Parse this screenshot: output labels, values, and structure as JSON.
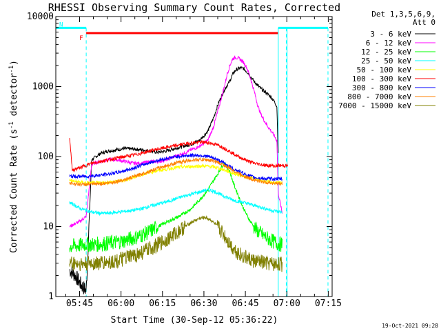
{
  "chart_data": {
    "type": "line",
    "title": "RHESSI Observing Summary Count Rates, Corrected",
    "xlabel": "Start Time (30-Sep-12 05:36:22)",
    "ylabel_main": "Corrected Count Rate (s",
    "ylabel_sup1": "-1",
    "ylabel_mid": " detector",
    "ylabel_sup2": "-1",
    "ylabel_end": ")",
    "yscale": "log",
    "ylim": [
      1,
      10000
    ],
    "xlim_minutes": [
      0,
      100
    ],
    "x_ticks": [
      "05:45",
      "06:00",
      "06:15",
      "06:30",
      "06:45",
      "07:00",
      "07:15"
    ],
    "x_tick_minutes": [
      8.6,
      23.6,
      38.6,
      53.6,
      68.6,
      83.6,
      98.6
    ],
    "y_ticks": [
      "1",
      "10",
      "100",
      "1000",
      "10000"
    ],
    "y_tick_values": [
      1,
      10,
      100,
      1000,
      10000
    ],
    "legend_header": [
      "Det 1,3,5,6,9,",
      "Att 0"
    ],
    "legend_position": "right",
    "footer": "19-Oct-2021 09:28",
    "flags": [
      {
        "label": "F",
        "color": "#ff0000",
        "start_min": 11,
        "end_min": 80.5,
        "level": 5800
      },
      {
        "label": "N",
        "color": "#00ffff",
        "start_min": 0,
        "end_min": 11,
        "level": 6900
      },
      {
        "label": "",
        "color": "#00ffff",
        "start_min": 80.5,
        "end_min": 98.5,
        "level": 6900
      }
    ],
    "vlines_solid_min": [
      0,
      80.5,
      83.7
    ],
    "vlines_dashed_min": [
      11,
      83.4,
      98.5
    ],
    "series": [
      {
        "name": "3 - 6 keV",
        "color": "#000000",
        "x": [
          5,
          7,
          9,
          11,
          13,
          16,
          19,
          22,
          25,
          28,
          31,
          34,
          37,
          40,
          43,
          46,
          49,
          52,
          55,
          57,
          59,
          61,
          63,
          64,
          65,
          66,
          67,
          68,
          69,
          70,
          71,
          72,
          73,
          74,
          75,
          76,
          77,
          78,
          79,
          80,
          80.5
        ],
        "y": [
          2.4,
          2.0,
          1.5,
          1.2,
          90,
          110,
          120,
          125,
          130,
          128,
          125,
          120,
          115,
          120,
          130,
          140,
          150,
          170,
          230,
          350,
          600,
          900,
          1200,
          1500,
          1700,
          1800,
          1850,
          1800,
          1650,
          1500,
          1300,
          1150,
          1050,
          950,
          880,
          820,
          760,
          700,
          620,
          520,
          100
        ]
      },
      {
        "name": "6 - 12 keV",
        "color": "#ff00ff",
        "x": [
          5,
          7,
          9,
          11,
          13,
          16,
          19,
          22,
          25,
          28,
          31,
          34,
          37,
          40,
          43,
          46,
          49,
          52,
          55,
          57,
          59,
          61,
          62,
          63,
          64,
          65,
          66,
          67,
          68,
          69,
          70,
          71,
          72,
          73,
          74,
          75,
          76,
          77,
          78,
          79,
          80,
          80.5,
          82
        ],
        "y": [
          10,
          11,
          12,
          14,
          78,
          85,
          90,
          90,
          85,
          80,
          80,
          85,
          85,
          90,
          100,
          110,
          125,
          140,
          170,
          260,
          500,
          1000,
          1500,
          2000,
          2500,
          2600,
          2550,
          2400,
          2200,
          1900,
          1500,
          1100,
          800,
          550,
          420,
          350,
          300,
          260,
          230,
          200,
          170,
          30,
          15
        ]
      },
      {
        "name": "12 - 25 keV",
        "color": "#00ff00",
        "x": [
          5,
          7,
          9,
          11,
          13,
          16,
          19,
          22,
          25,
          28,
          31,
          34,
          37,
          40,
          43,
          46,
          49,
          52,
          55,
          57,
          59,
          60,
          61,
          62,
          63,
          64,
          65,
          66,
          67,
          68,
          69,
          70,
          71,
          72,
          74,
          76,
          78,
          80,
          82
        ],
        "y": [
          5.2,
          5.3,
          5.4,
          5.6,
          5.5,
          5.6,
          5.8,
          6.0,
          6.3,
          6.8,
          7.5,
          8.5,
          10,
          11.5,
          13,
          15,
          18,
          24,
          33,
          45,
          60,
          72,
          80,
          70,
          60,
          45,
          35,
          28,
          22,
          18,
          15,
          12.5,
          11,
          9.5,
          8,
          7,
          6.3,
          5.8,
          5.5
        ]
      },
      {
        "name": "25 - 50 keV",
        "color": "#00ffff",
        "x": [
          5,
          7,
          9,
          11,
          13,
          16,
          19,
          22,
          25,
          28,
          31,
          34,
          37,
          40,
          43,
          46,
          49,
          52,
          54,
          56,
          58,
          60,
          62,
          64,
          66,
          68,
          70,
          72,
          74,
          76,
          78,
          80,
          82
        ],
        "y": [
          22,
          20,
          18,
          17,
          16,
          15.5,
          15.5,
          16,
          16.5,
          17,
          18,
          19.5,
          21,
          22.5,
          24.5,
          27,
          29,
          31,
          33,
          33,
          31,
          28,
          26,
          24,
          23,
          22,
          21,
          20,
          19,
          18,
          17,
          16.5,
          16
        ]
      },
      {
        "name": "50 - 100 keV",
        "color": "#ffff00",
        "x": [
          5,
          7,
          9,
          11,
          13,
          16,
          19,
          22,
          25,
          28,
          31,
          34,
          37,
          40,
          43,
          46,
          49,
          52,
          54,
          56,
          58,
          60,
          62,
          64,
          66,
          68,
          70,
          72,
          74,
          76,
          78,
          80,
          82
        ],
        "y": [
          46,
          44,
          43,
          42,
          42,
          42,
          43,
          44,
          46,
          50,
          55,
          60,
          63,
          66,
          69,
          71,
          72,
          73,
          73,
          72,
          70,
          66,
          62,
          58,
          55,
          52,
          50,
          48,
          46,
          44,
          43,
          42,
          42
        ]
      },
      {
        "name": "100 - 300 keV",
        "color": "#ff0000",
        "x": [
          5,
          6,
          7,
          9,
          11,
          13,
          16,
          19,
          22,
          25,
          28,
          31,
          34,
          37,
          40,
          43,
          46,
          49,
          52,
          54,
          56,
          58,
          60,
          62,
          64,
          66,
          68,
          70,
          72,
          74,
          76,
          78,
          80,
          80.5,
          82,
          84
        ],
        "y": [
          190,
          62,
          66,
          70,
          75,
          80,
          85,
          90,
          95,
          100,
          105,
          112,
          120,
          128,
          135,
          142,
          150,
          156,
          160,
          160,
          155,
          148,
          138,
          125,
          112,
          100,
          92,
          85,
          80,
          77,
          75,
          74,
          73,
          75,
          74,
          74
        ]
      },
      {
        "name": "300 - 800 keV",
        "color": "#0000ff",
        "x": [
          5,
          7,
          9,
          11,
          13,
          16,
          19,
          22,
          25,
          28,
          31,
          34,
          37,
          40,
          43,
          46,
          49,
          52,
          54,
          56,
          58,
          60,
          62,
          64,
          66,
          68,
          70,
          72,
          74,
          76,
          78,
          80,
          82
        ],
        "y": [
          52,
          52,
          52,
          52,
          53,
          54,
          56,
          59,
          63,
          68,
          75,
          82,
          88,
          94,
          99,
          102,
          104,
          104,
          102,
          98,
          92,
          84,
          76,
          68,
          62,
          57,
          53,
          50,
          49,
          48,
          48,
          48,
          48
        ]
      },
      {
        "name": "800 - 7000 keV",
        "color": "#ff8000",
        "x": [
          5,
          7,
          9,
          11,
          13,
          16,
          19,
          22,
          25,
          28,
          31,
          34,
          37,
          40,
          43,
          46,
          49,
          52,
          54,
          56,
          58,
          60,
          62,
          64,
          66,
          68,
          70,
          72,
          74,
          76,
          78,
          80,
          82
        ],
        "y": [
          42,
          41,
          40,
          40,
          40,
          41,
          42,
          44,
          47,
          51,
          56,
          62,
          68,
          74,
          80,
          85,
          89,
          90,
          90,
          88,
          84,
          78,
          71,
          64,
          58,
          53,
          49,
          46,
          44,
          43,
          42,
          41,
          41
        ]
      },
      {
        "name": "7000 - 15000 keV",
        "color": "#808000",
        "x": [
          5,
          7,
          9,
          11,
          13,
          16,
          19,
          22,
          25,
          28,
          31,
          34,
          37,
          40,
          43,
          46,
          49,
          52,
          54,
          56,
          58,
          60,
          62,
          64,
          66,
          68,
          70,
          72,
          74,
          76,
          78,
          80,
          82
        ],
        "y": [
          3.0,
          3.0,
          2.9,
          2.9,
          3.0,
          3.0,
          3.1,
          3.2,
          3.5,
          3.8,
          4.2,
          4.8,
          5.5,
          6.5,
          7.8,
          9.5,
          11.5,
          13,
          13.5,
          12.5,
          10.5,
          8.5,
          6.5,
          5.0,
          4.2,
          3.7,
          3.4,
          3.2,
          3.1,
          3.0,
          2.9,
          2.9,
          2.9
        ]
      }
    ]
  }
}
